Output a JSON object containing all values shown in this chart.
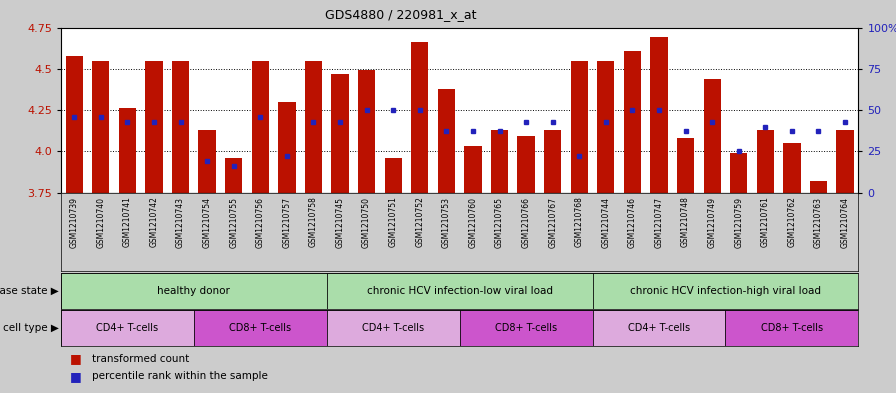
{
  "title": "GDS4880 / 220981_x_at",
  "samples": [
    "GSM1210739",
    "GSM1210740",
    "GSM1210741",
    "GSM1210742",
    "GSM1210743",
    "GSM1210754",
    "GSM1210755",
    "GSM1210756",
    "GSM1210757",
    "GSM1210758",
    "GSM1210745",
    "GSM1210750",
    "GSM1210751",
    "GSM1210752",
    "GSM1210753",
    "GSM1210760",
    "GSM1210765",
    "GSM1210766",
    "GSM1210767",
    "GSM1210768",
    "GSM1210744",
    "GSM1210746",
    "GSM1210747",
    "GSM1210748",
    "GSM1210749",
    "GSM1210759",
    "GSM1210761",
    "GSM1210762",
    "GSM1210763",
    "GSM1210764"
  ],
  "red_values": [
    4.58,
    4.55,
    4.26,
    4.55,
    4.55,
    4.13,
    3.96,
    4.55,
    4.3,
    4.55,
    4.47,
    4.49,
    3.96,
    4.66,
    4.38,
    4.03,
    4.13,
    4.09,
    4.13,
    4.55,
    4.55,
    4.61,
    4.69,
    4.08,
    4.44,
    3.99,
    4.13,
    4.05,
    3.82,
    4.13
  ],
  "blue_pct": [
    46,
    46,
    43,
    43,
    43,
    19,
    16,
    46,
    22,
    43,
    43,
    50,
    50,
    50,
    37,
    37,
    37,
    43,
    43,
    22,
    43,
    50,
    50,
    37,
    43,
    25,
    40,
    37,
    37,
    43
  ],
  "ymin": 3.75,
  "ymax": 4.75,
  "yticks": [
    3.75,
    4.0,
    4.25,
    4.5,
    4.75
  ],
  "right_yticks": [
    0,
    25,
    50,
    75,
    100
  ],
  "bar_color": "#bb1100",
  "dot_color": "#2222bb",
  "fig_bg": "#cccccc",
  "plot_bg": "#ffffff",
  "xtick_bg": "#cccccc",
  "disease_state_groups": [
    {
      "label": "healthy donor",
      "start": 0,
      "end": 9
    },
    {
      "label": "chronic HCV infection-low viral load",
      "start": 10,
      "end": 19
    },
    {
      "label": "chronic HCV infection-high viral load",
      "start": 20,
      "end": 29
    }
  ],
  "cell_type_groups": [
    {
      "label": "CD4+ T-cells",
      "start": 0,
      "end": 4
    },
    {
      "label": "CD8+ T-cells",
      "start": 5,
      "end": 9
    },
    {
      "label": "CD4+ T-cells",
      "start": 10,
      "end": 14
    },
    {
      "label": "CD8+ T-cells",
      "start": 15,
      "end": 19
    },
    {
      "label": "CD4+ T-cells",
      "start": 20,
      "end": 24
    },
    {
      "label": "CD8+ T-cells",
      "start": 25,
      "end": 29
    }
  ],
  "ds_color": "#aaddaa",
  "cd4_color": "#ddaadd",
  "cd8_color": "#cc55cc",
  "disease_state_label": "disease state",
  "cell_type_label": "cell type",
  "legend_red": "transformed count",
  "legend_blue": "percentile rank within the sample"
}
